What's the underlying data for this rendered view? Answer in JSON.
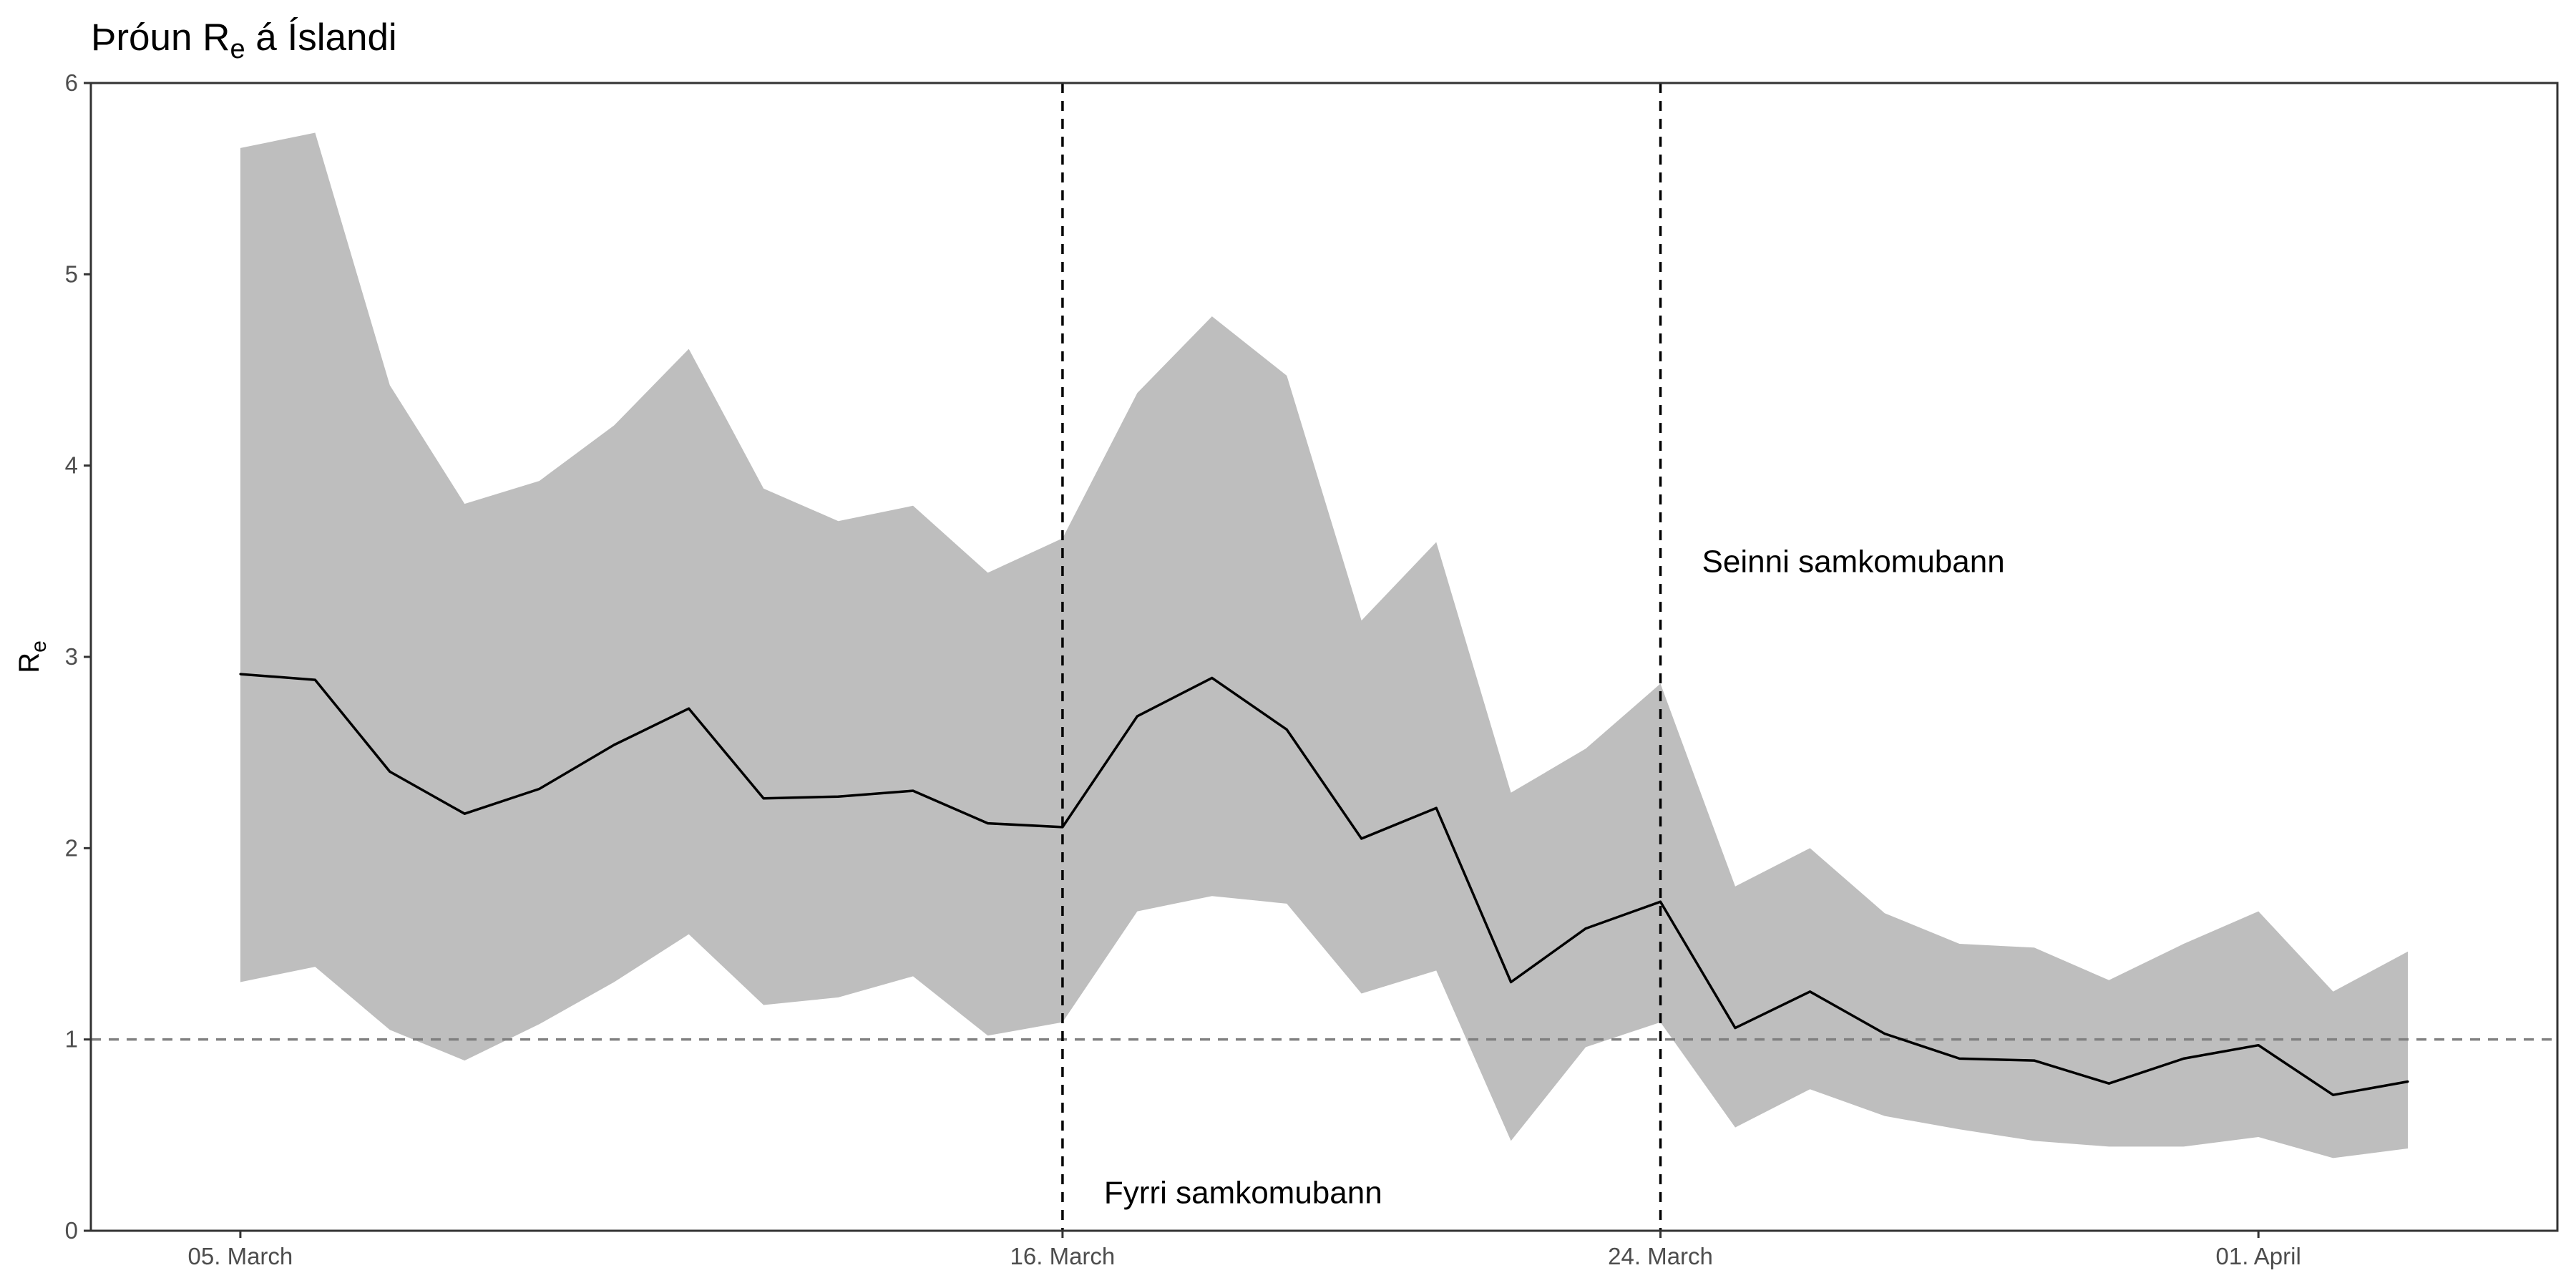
{
  "chart_data": {
    "type": "line",
    "title": "Þróun R",
    "title_subscript": "e",
    "title_suffix": " á Íslandi",
    "xlabel": "",
    "ylabel": "R",
    "ylabel_subscript": "e",
    "x_range": [
      "2020-03-03",
      "2020-04-05"
    ],
    "ylim": [
      0,
      6
    ],
    "yticks": [
      0,
      1,
      2,
      3,
      4,
      5,
      6
    ],
    "ytick_labels": [
      "0",
      "1",
      "2",
      "3",
      "4",
      "5",
      "6"
    ],
    "xticks": [
      "2020-03-05",
      "2020-03-16",
      "2020-03-24",
      "2020-04-01"
    ],
    "xtick_labels": [
      "05. March",
      "16. March",
      "24. March",
      "01. April"
    ],
    "grid": false,
    "x": [
      "2020-03-05",
      "2020-03-06",
      "2020-03-07",
      "2020-03-08",
      "2020-03-09",
      "2020-03-10",
      "2020-03-11",
      "2020-03-12",
      "2020-03-13",
      "2020-03-14",
      "2020-03-15",
      "2020-03-16",
      "2020-03-17",
      "2020-03-18",
      "2020-03-19",
      "2020-03-20",
      "2020-03-21",
      "2020-03-22",
      "2020-03-23",
      "2020-03-24",
      "2020-03-25",
      "2020-03-26",
      "2020-03-27",
      "2020-03-28",
      "2020-03-29",
      "2020-03-30",
      "2020-03-31",
      "2020-04-01",
      "2020-04-02",
      "2020-04-03"
    ],
    "series": [
      {
        "values": [
          2.91,
          2.88,
          2.4,
          2.18,
          2.31,
          2.54,
          2.73,
          2.26,
          2.27,
          2.3,
          2.13,
          2.11,
          2.69,
          2.89,
          2.62,
          2.05,
          2.21,
          1.3,
          1.58,
          1.72,
          1.06,
          1.25,
          1.03,
          0.9,
          0.89,
          0.77,
          0.9,
          0.97,
          0.71,
          0.78
        ],
        "color": "#000000"
      }
    ],
    "band": {
      "lower": [
        1.3,
        1.38,
        1.05,
        0.89,
        1.08,
        1.3,
        1.55,
        1.18,
        1.22,
        1.33,
        1.02,
        1.09,
        1.67,
        1.75,
        1.71,
        1.24,
        1.36,
        0.47,
        0.96,
        1.09,
        0.54,
        0.74,
        0.6,
        0.53,
        0.47,
        0.44,
        0.44,
        0.49,
        0.38,
        0.43
      ],
      "upper": [
        5.66,
        5.74,
        4.42,
        3.8,
        3.92,
        4.21,
        4.61,
        3.88,
        3.71,
        3.79,
        3.44,
        3.62,
        4.38,
        4.78,
        4.47,
        3.19,
        3.6,
        2.29,
        2.52,
        2.86,
        1.8,
        2.0,
        1.66,
        1.5,
        1.48,
        1.31,
        1.5,
        1.67,
        1.25,
        1.46
      ],
      "color": "#bebebe"
    },
    "reference_lines": [
      {
        "orientation": "horizontal",
        "y": 1,
        "color": "#808080",
        "style": "dashed"
      },
      {
        "orientation": "vertical",
        "x": "2020-03-16",
        "color": "#000000",
        "style": "dashed"
      },
      {
        "orientation": "vertical",
        "x": "2020-03-24",
        "color": "#000000",
        "style": "dashed"
      }
    ],
    "annotations": [
      {
        "text": "Fyrri samkomubann",
        "x": "2020-03-16",
        "y": 0.2
      },
      {
        "text": "Seinni samkomubann",
        "x": "2020-03-24",
        "y": 3.5
      }
    ],
    "colors": {
      "panel_border": "#333333",
      "tick_text": "#4d4d4d"
    }
  }
}
